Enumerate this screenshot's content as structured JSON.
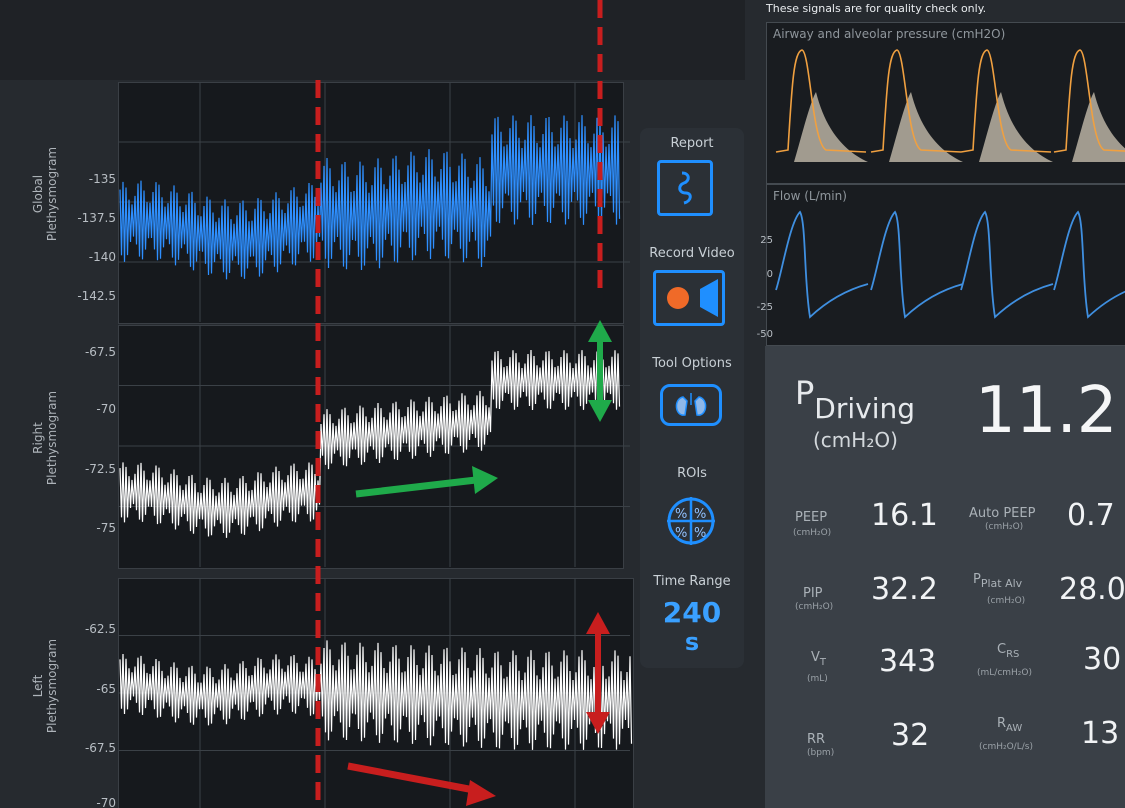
{
  "header": {
    "note": "These signals are for quality check only."
  },
  "plots": {
    "global": {
      "title": "Global\nPlethysmogram",
      "ticks": [
        "-135",
        "-137.5",
        "-140",
        "-142.5"
      ]
    },
    "right": {
      "title": "Right\nPlethysmogram",
      "ticks": [
        "-67.5",
        "-70",
        "-72.5",
        "-75"
      ]
    },
    "left": {
      "title": "Left\nPlethysmogram",
      "ticks": [
        "-62.5",
        "-65",
        "-67.5",
        "-70"
      ]
    }
  },
  "sidebar": {
    "report": "Report",
    "record_video": "Record Video",
    "tool_options": "Tool Options",
    "rois": "ROIs",
    "time_range_label": "Time Range",
    "time_range_value": "240",
    "time_range_unit": "s"
  },
  "waveforms": {
    "pressure_title": "Airway and alveolar pressure (cmH2O)",
    "flow_title": "Flow (L/min)",
    "flow_ticks": [
      "25",
      "0",
      "-25",
      "-50"
    ],
    "colors": {
      "pressure": "#f0a040",
      "flow": "#3f8fe0"
    }
  },
  "metrics": {
    "driving": {
      "p": "P",
      "sub": "Driving",
      "unit": "(cmH₂O)",
      "value": "11.2"
    },
    "peep": {
      "label": "PEEP",
      "unit": "(cmH₂O)",
      "value": "16.1"
    },
    "auto_peep": {
      "label": "Auto PEEP",
      "unit": "(cmH₂O)",
      "value": "0.7"
    },
    "pip": {
      "label": "PIP",
      "unit": "(cmH₂O)",
      "value": "32.2"
    },
    "pplat": {
      "p": "P",
      "sub": "Plat Alv",
      "unit": "(cmH₂O)",
      "value": "28.0"
    },
    "vt": {
      "label": "V",
      "sub": "T",
      "unit": "(mL)",
      "value": "343"
    },
    "crs": {
      "label": "C",
      "sub": "RS",
      "unit": "(mL/cmH₂O)",
      "value": "30"
    },
    "rr": {
      "label": "RR",
      "unit": "(bpm)",
      "value": "32"
    },
    "raw": {
      "label": "R",
      "sub": "AW",
      "unit": "(cmH₂O/L/s)",
      "value": "13"
    }
  },
  "colors": {
    "global_trace": "#2e8fff",
    "annotation_red": "#c81e1e",
    "annotation_green": "#1faa4a",
    "icon_blue": "#1f8fff"
  }
}
